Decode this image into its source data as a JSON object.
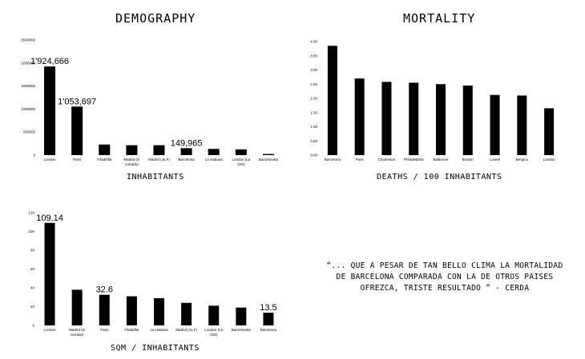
{
  "quote": "“... QUE A PESAR DE TAN BELLO CLIMA LA MORTALIDAD DE BARCELONA COMPARADA CON LA DE OTROS PAISES OFREZCA, TRISTE RESULTADO ” - CERDA",
  "colors": {
    "bar": "#000000",
    "background": "#ffffff"
  },
  "chart_data": [
    {
      "type": "bar",
      "title": "DEMOGRAPHY",
      "xlabel": "INHABITANTS",
      "ylabel": "",
      "ylim": [
        0,
        2500000
      ],
      "yticks": [
        "0",
        "500000",
        "1000000",
        "1500000",
        "2000000",
        "2500000"
      ],
      "categories": [
        "London",
        "Paris",
        "Filadelfia",
        "Madrid (in corrado)",
        "Madrid (Ju.F)",
        "Barcelona",
        "La Habana",
        "London (La Cité)",
        "Barceloneta"
      ],
      "values": [
        1924666,
        1053697,
        230000,
        215000,
        215000,
        149965,
        135000,
        125000,
        25000
      ],
      "data_labels": [
        "1'924,666",
        "1'053,697",
        "",
        "",
        "",
        "149,965",
        "",
        "",
        ""
      ]
    },
    {
      "type": "bar",
      "title": "MORTALITY",
      "xlabel": "DEATHS / 100 INHABITANTS",
      "ylabel": "",
      "ylim": [
        0,
        4
      ],
      "yticks": [
        "0.00",
        "0.50",
        "1.00",
        "1.50",
        "2.00",
        "2.50",
        "3.00",
        "3.50",
        "4.00"
      ],
      "categories": [
        "Barcelona",
        "Paris",
        "Charleston",
        "Philadelphia",
        "Baltimore",
        "Boston",
        "Lowell",
        "Bergica",
        "London"
      ],
      "values": [
        3.85,
        2.7,
        2.58,
        2.55,
        2.5,
        2.45,
        2.12,
        2.1,
        1.65
      ],
      "data_labels": [
        "",
        "",
        "",
        "",
        "",
        "",
        "",
        "",
        ""
      ]
    },
    {
      "type": "bar",
      "title": "",
      "xlabel": "SQM / INHABITANTS",
      "ylabel": "",
      "ylim": [
        0,
        120
      ],
      "yticks": [
        "0",
        "20",
        "40",
        "60",
        "80",
        "100",
        "120"
      ],
      "categories": [
        "London",
        "Madrid (in corrado)",
        "Paris",
        "Filadelfia",
        "La Habana",
        "Madrid (Ju.F)",
        "London (La Cité)",
        "Barceloneta",
        "Barcelona"
      ],
      "values": [
        109.14,
        38,
        32.6,
        31,
        29,
        24,
        21,
        19,
        13.5
      ],
      "data_labels": [
        "109.14",
        "",
        "32.6",
        "",
        "",
        "",
        "",
        "",
        "13.5"
      ]
    }
  ]
}
